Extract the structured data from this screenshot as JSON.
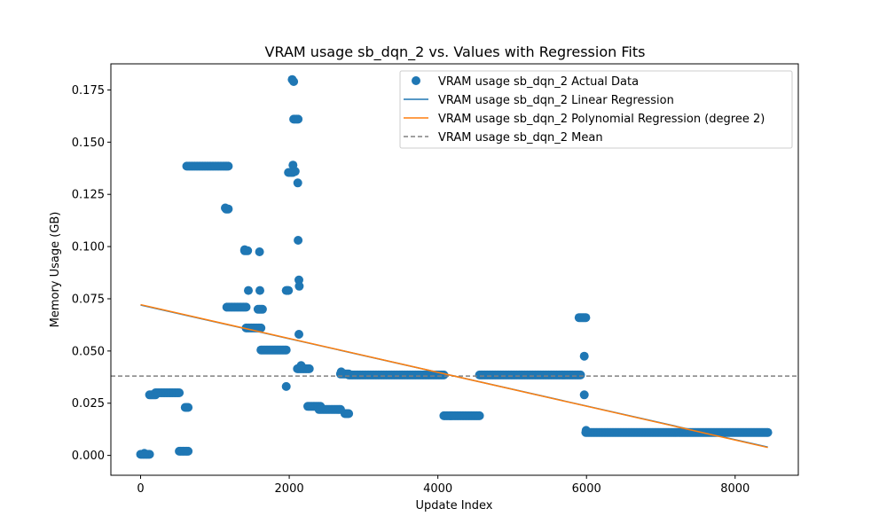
{
  "chart_data": {
    "type": "scatter",
    "title": "VRAM usage sb_dqn_2 vs. Values with Regression Fits",
    "xlabel": "Update Index",
    "ylabel": "Memory Usage (GB)",
    "xlim": [
      -400,
      8850
    ],
    "ylim": [
      -0.0095,
      0.1875
    ],
    "xticks": [
      0,
      2000,
      4000,
      6000,
      8000
    ],
    "xtick_labels": [
      "0",
      "2000",
      "4000",
      "6000",
      "8000"
    ],
    "yticks": [
      0.0,
      0.025,
      0.05,
      0.075,
      0.1,
      0.125,
      0.15,
      0.175
    ],
    "ytick_labels": [
      "0.000",
      "0.025",
      "0.050",
      "0.075",
      "0.100",
      "0.125",
      "0.150",
      "0.175"
    ],
    "grid": false,
    "legend_position": "top-right",
    "colors": {
      "scatter": "#1f77b4",
      "linear": "#1f77b4",
      "poly": "#ff7f0e",
      "mean": "#808080"
    },
    "series": [
      {
        "name": "VRAM usage sb_dqn_2 Actual Data",
        "kind": "scatter",
        "segments": [
          {
            "x_start": 0,
            "x_end": 120,
            "y": 0.0005
          },
          {
            "x_start": 120,
            "x_end": 200,
            "y": 0.029
          },
          {
            "x_start": 200,
            "x_end": 520,
            "y": 0.03
          },
          {
            "x_start": 520,
            "x_end": 640,
            "y": 0.002
          },
          {
            "x_start": 600,
            "x_end": 640,
            "y": 0.023
          },
          {
            "x_start": 620,
            "x_end": 1180,
            "y": 0.1385
          },
          {
            "x_start": 1150,
            "x_end": 1180,
            "y": 0.118
          },
          {
            "x_start": 1160,
            "x_end": 1420,
            "y": 0.071
          },
          {
            "x_start": 1400,
            "x_end": 1440,
            "y": 0.098
          },
          {
            "x_start": 1420,
            "x_end": 1620,
            "y": 0.061
          },
          {
            "x_start": 1600,
            "x_end": 1640,
            "y": 0.07
          },
          {
            "x_start": 1620,
            "x_end": 1960,
            "y": 0.0505
          },
          {
            "x_start": 1960,
            "x_end": 1990,
            "y": 0.079
          },
          {
            "x_start": 1990,
            "x_end": 2050,
            "y": 0.1355
          },
          {
            "x_start": 2060,
            "x_end": 2120,
            "y": 0.161
          },
          {
            "x_start": 2110,
            "x_end": 2270,
            "y": 0.0415
          },
          {
            "x_start": 2250,
            "x_end": 2420,
            "y": 0.0235
          },
          {
            "x_start": 2400,
            "x_end": 2690,
            "y": 0.022
          },
          {
            "x_start": 2690,
            "x_end": 2800,
            "y": 0.039
          },
          {
            "x_start": 2750,
            "x_end": 2800,
            "y": 0.02
          },
          {
            "x_start": 2800,
            "x_end": 4080,
            "y": 0.0385
          },
          {
            "x_start": 4080,
            "x_end": 4560,
            "y": 0.019
          },
          {
            "x_start": 4560,
            "x_end": 5920,
            "y": 0.0385
          },
          {
            "x_start": 5900,
            "x_end": 5990,
            "y": 0.066
          },
          {
            "x_start": 5990,
            "x_end": 8440,
            "y": 0.011
          }
        ],
        "points": [
          {
            "x": 50,
            "y": 0.001
          },
          {
            "x": 1140,
            "y": 0.1185
          },
          {
            "x": 1400,
            "y": 0.0985
          },
          {
            "x": 1450,
            "y": 0.079
          },
          {
            "x": 1600,
            "y": 0.0975
          },
          {
            "x": 1605,
            "y": 0.079
          },
          {
            "x": 1580,
            "y": 0.07
          },
          {
            "x": 1960,
            "y": 0.033
          },
          {
            "x": 2040,
            "y": 0.18
          },
          {
            "x": 2060,
            "y": 0.179
          },
          {
            "x": 2050,
            "y": 0.139
          },
          {
            "x": 2080,
            "y": 0.136
          },
          {
            "x": 2115,
            "y": 0.1305
          },
          {
            "x": 2120,
            "y": 0.103
          },
          {
            "x": 2130,
            "y": 0.084
          },
          {
            "x": 2135,
            "y": 0.081
          },
          {
            "x": 2130,
            "y": 0.058
          },
          {
            "x": 2160,
            "y": 0.043
          },
          {
            "x": 2700,
            "y": 0.04
          },
          {
            "x": 5970,
            "y": 0.0475
          },
          {
            "x": 5970,
            "y": 0.029
          },
          {
            "x": 5995,
            "y": 0.012
          }
        ]
      },
      {
        "name": "VRAM usage sb_dqn_2 Linear Regression",
        "kind": "line",
        "x": [
          0,
          8440
        ],
        "y": [
          0.072,
          0.004
        ]
      },
      {
        "name": "VRAM usage sb_dqn_2 Polynomial Regression (degree 2)",
        "kind": "line",
        "x": [
          0,
          8440
        ],
        "y": [
          0.0722,
          0.0038
        ]
      },
      {
        "name": "VRAM usage sb_dqn_2 Mean",
        "kind": "hline",
        "y": 0.038
      }
    ]
  }
}
